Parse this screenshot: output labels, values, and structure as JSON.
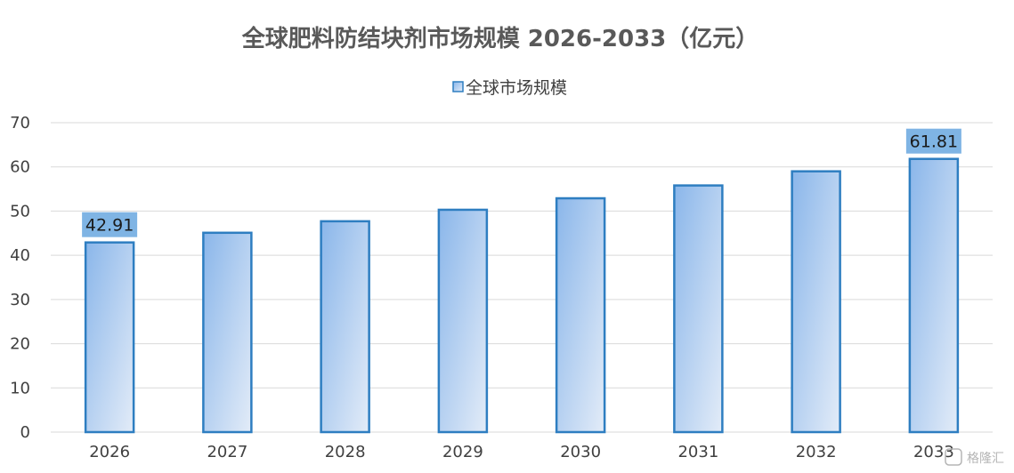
{
  "chart_data": {
    "type": "bar",
    "title": "全球肥料防结块剂市场规模 2026-2033（亿元）",
    "categories": [
      "2026",
      "2027",
      "2028",
      "2029",
      "2030",
      "2031",
      "2032",
      "2033"
    ],
    "series": [
      {
        "name": "全球市场规模",
        "values": [
          42.91,
          45.1,
          47.7,
          50.3,
          52.9,
          55.8,
          59.0,
          61.81
        ]
      }
    ],
    "data_labels": [
      {
        "category": "2026",
        "text": "42.91"
      },
      {
        "category": "2033",
        "text": "61.81"
      }
    ],
    "ylim": [
      0,
      70
    ],
    "yticks": [
      "0",
      "10",
      "20",
      "30",
      "40",
      "50",
      "60",
      "70"
    ],
    "grid": true,
    "legend_position": "top",
    "colors": {
      "bar_fill_start": "#8ab6ea",
      "bar_fill_end": "#e3ecf8",
      "bar_border": "#2e7ec1",
      "label_bg": "#7fb4e4",
      "grid": "#d9d9d9"
    }
  },
  "watermark": {
    "text": "格隆汇"
  }
}
